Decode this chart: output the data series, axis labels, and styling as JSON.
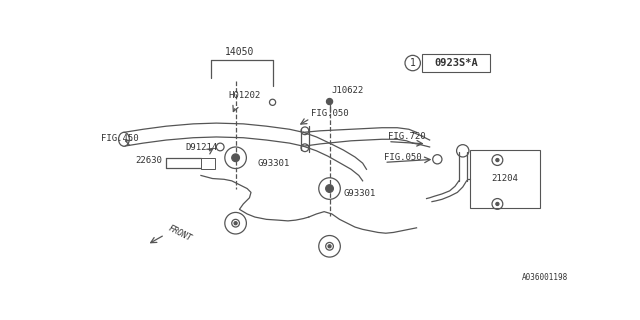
{
  "bg_color": "#ffffff",
  "line_color": "#555555",
  "text_color": "#333333",
  "part_number_box": "0923S*A",
  "diagram_id": "1",
  "catalog_number": "A036001198"
}
